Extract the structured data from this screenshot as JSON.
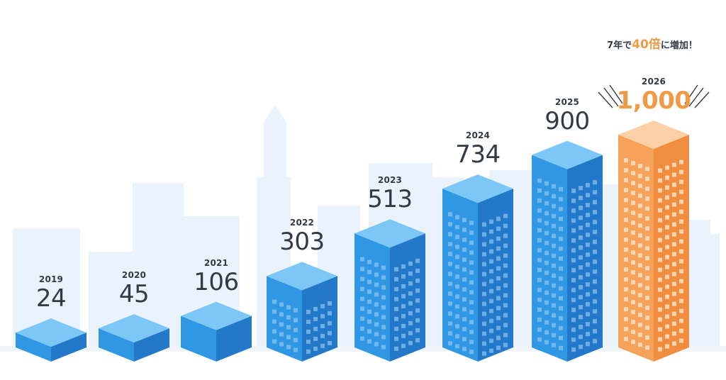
{
  "chart_data": {
    "type": "bar",
    "title": "",
    "categories": [
      "2019",
      "2020",
      "2021",
      "2022",
      "2023",
      "2024",
      "2025",
      "2026"
    ],
    "values": [
      24,
      45,
      106,
      303,
      513,
      734,
      900,
      1000
    ],
    "value_labels": [
      "24",
      "45",
      "106",
      "303",
      "513",
      "734",
      "900",
      "1,000"
    ],
    "highlight_index": 7,
    "annotation": {
      "prefix": "7年で",
      "number": "40倍",
      "suffix": "に増加！"
    },
    "xlabel": "",
    "ylabel": ""
  },
  "colors": {
    "bar_front": "#2f97e3",
    "bar_side": "#2478c9",
    "bar_top": "#7cc7f5",
    "highlight_front": "#f6a25a",
    "highlight_side": "#f08d3f",
    "highlight_top": "#fbd0a6",
    "window_blue": "#8fc6f2",
    "window_orange": "#fde2c6",
    "background_city": "#eaf2fb",
    "text": "#333a44",
    "accent": "#ef9a45"
  }
}
